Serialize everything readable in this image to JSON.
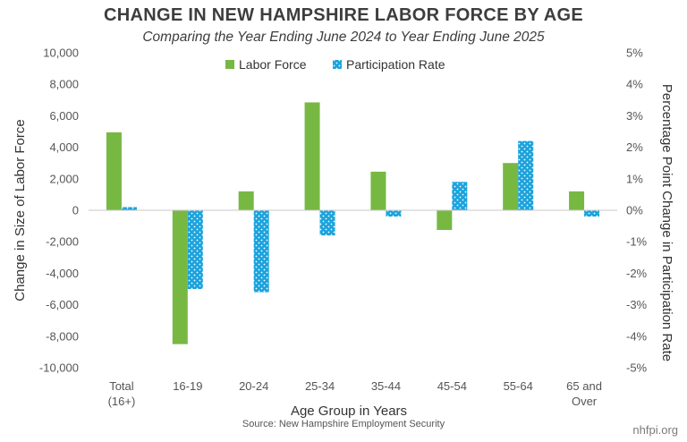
{
  "title": "CHANGE IN NEW HAMPSHIRE LABOR FORCE BY AGE",
  "subtitle": "Comparing the Year Ending June 2024 to Year Ending June 2025",
  "source": "Source: New Hampshire Employment Security",
  "brand": "nhfpi.org",
  "colors": {
    "labor_force": "#77b843",
    "participation_rate": "#1ba3dc",
    "axis": "#c8c8c8"
  },
  "chart_data": {
    "type": "bar",
    "title": "CHANGE IN NEW HAMPSHIRE LABOR FORCE BY AGE",
    "subtitle": "Comparing the Year Ending June 2024 to Year Ending June 2025",
    "categories": [
      [
        "Total",
        "(16+)"
      ],
      [
        "16-19"
      ],
      [
        "20-24"
      ],
      [
        "25-34"
      ],
      [
        "35-44"
      ],
      [
        "45-54"
      ],
      [
        "55-64"
      ],
      [
        "65 and",
        "Over"
      ]
    ],
    "xlabel": "Age Group in Years",
    "ylabel": "Change in Size of Labor Force",
    "y2label": "Percentage Point Change in Participation Rate",
    "ylim": [
      -10000,
      10000
    ],
    "y2lim": [
      -5,
      5
    ],
    "yticks": [
      "10,000",
      "8,000",
      "6,000",
      "4,000",
      "2,000",
      "0",
      "-2,000",
      "-4,000",
      "-6,000",
      "-8,000",
      "-10,000"
    ],
    "y2ticks": [
      "5%",
      "4%",
      "3%",
      "2%",
      "1%",
      "0%",
      "-1%",
      "-2%",
      "-3%",
      "-4%",
      "-5%"
    ],
    "legend": "top-center",
    "grid": false,
    "series": [
      {
        "name": "Labor Force",
        "axis": "left",
        "values": [
          4950,
          -8500,
          1200,
          6850,
          2450,
          -1250,
          3000,
          1200
        ]
      },
      {
        "name": "Participation Rate",
        "axis": "right",
        "values": [
          0.1,
          -2.5,
          -2.6,
          -0.8,
          -0.2,
          0.9,
          2.2,
          -0.2
        ]
      }
    ]
  }
}
